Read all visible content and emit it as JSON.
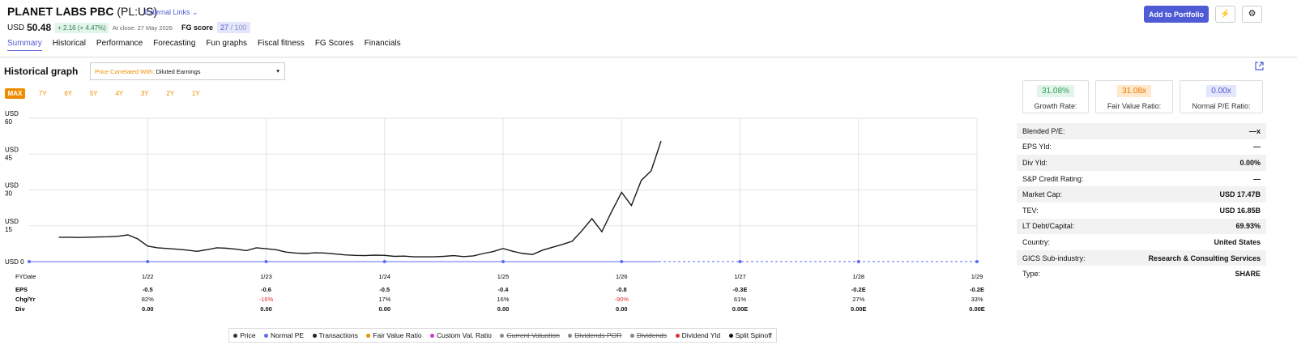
{
  "header": {
    "name": "PLANET LABS PBC",
    "ticker": "(PL:US)",
    "external_links": "External Links",
    "currency": "USD",
    "price": "50.48",
    "change": "+ 2.16 (+ 4.47%)",
    "close": "At close: 27 May 2026",
    "fg_label": "FG score",
    "fg_score": "27",
    "fg_max": "/ 100",
    "add_button": "Add to Portfolio"
  },
  "tabs": [
    "Summary",
    "Historical",
    "Performance",
    "Forecasting",
    "Fun graphs",
    "Fiscal fitness",
    "FG Scores",
    "Financials"
  ],
  "graph": {
    "title": "Historical graph",
    "correlated_label": "Price Correlated With:",
    "correlated_value": "Diluted Earnings",
    "ranges": [
      "MAX",
      "7Y",
      "6Y",
      "5Y",
      "4Y",
      "3Y",
      "2Y",
      "1Y"
    ]
  },
  "chart_data": {
    "type": "line",
    "grid": true,
    "xlim": [
      "1/21",
      "1/29"
    ],
    "xticks": [
      "1/22",
      "1/23",
      "1/24",
      "1/25",
      "1/26",
      "1/27",
      "1/28",
      "1/29"
    ],
    "ylim": [
      0,
      60
    ],
    "yticks": [
      {
        "value": 0,
        "label": "USD 0"
      },
      {
        "value": 15,
        "label": "USD 15"
      },
      {
        "value": 30,
        "label": "USD 30"
      },
      {
        "value": 45,
        "label": "USD 45"
      },
      {
        "value": 60,
        "label": "USD 60"
      }
    ],
    "series": [
      {
        "name": "Price",
        "color": "#1a1a1a",
        "x": [
          "4/21",
          "5/21",
          "6/21",
          "7/21",
          "8/21",
          "9/21",
          "10/21",
          "11/21",
          "12/21",
          "1/22",
          "2/22",
          "3/22",
          "4/22",
          "5/22",
          "6/22",
          "7/22",
          "8/22",
          "9/22",
          "10/22",
          "11/22",
          "12/22",
          "1/23",
          "2/23",
          "3/23",
          "4/23",
          "5/23",
          "6/23",
          "7/23",
          "8/23",
          "9/23",
          "10/23",
          "11/23",
          "12/23",
          "1/24",
          "2/24",
          "3/24",
          "4/24",
          "5/24",
          "6/24",
          "7/24",
          "8/24",
          "9/24",
          "10/24",
          "11/24",
          "12/24",
          "1/25",
          "2/25",
          "3/25",
          "4/25",
          "5/25",
          "6/25",
          "7/25",
          "8/25",
          "9/25",
          "10/25",
          "11/25",
          "12/25",
          "1/26",
          "2/26",
          "3/26",
          "4/26",
          "5/26"
        ],
        "values": [
          10.2,
          10.2,
          10.1,
          10.2,
          10.3,
          10.4,
          10.6,
          11.2,
          9.5,
          6.5,
          5.8,
          5.5,
          5.2,
          4.8,
          4.3,
          5.0,
          5.8,
          5.6,
          5.2,
          4.6,
          5.8,
          5.4,
          5.0,
          4.0,
          3.6,
          3.4,
          3.7,
          3.6,
          3.2,
          2.8,
          2.6,
          2.5,
          2.7,
          2.6,
          2.2,
          2.3,
          2.0,
          2.0,
          2.0,
          2.2,
          2.5,
          2.1,
          2.4,
          3.4,
          4.2,
          5.5,
          4.3,
          3.4,
          3.0,
          4.8,
          6.0,
          7.2,
          8.5,
          13.0,
          18.0,
          12.5,
          21.0,
          29.0,
          23.5,
          34.0,
          38.0,
          50.48
        ]
      },
      {
        "name": "Normal PE",
        "color": "#5b6ef5",
        "x": [
          "1/21",
          "1/22",
          "1/23",
          "1/24",
          "1/25",
          "1/26",
          "1/27",
          "1/28",
          "1/29"
        ],
        "values": [
          0,
          0,
          0,
          0,
          0,
          0,
          0,
          0,
          0
        ]
      }
    ]
  },
  "fy_table": {
    "header": "FYDate",
    "rows": [
      {
        "label": "EPS",
        "cells": [
          "-0.5",
          "-0.6",
          "-0.5",
          "-0.4",
          "-0.8",
          "-0.3E",
          "-0.2E",
          "-0.2E"
        ]
      },
      {
        "label": "Chg/Yr",
        "cells": [
          "82%",
          "-16%",
          "17%",
          "16%",
          "-90%",
          "61%",
          "27%",
          "33%"
        ]
      },
      {
        "label": "Div",
        "cells": [
          "0.00",
          "0.00",
          "0.00",
          "0.00",
          "0.00",
          "0.00E",
          "0.00E",
          "0.00E"
        ]
      }
    ]
  },
  "legend": [
    {
      "label": "Price",
      "color": "#333",
      "active": true
    },
    {
      "label": "Normal PE",
      "color": "#5b6ef5",
      "active": true
    },
    {
      "label": "Transactions",
      "color": "#222",
      "active": true
    },
    {
      "label": "Fair Value Ratio",
      "color": "#f08c00",
      "active": true
    },
    {
      "label": "Custom Val. Ratio",
      "color": "#d633d6",
      "active": true
    },
    {
      "label": "Current Valuation",
      "color": "#888",
      "active": false
    },
    {
      "label": "Dividends POR",
      "color": "#888",
      "active": false
    },
    {
      "label": "Dividends",
      "color": "#888",
      "active": false
    },
    {
      "label": "Dividend Yld",
      "color": "#e03131",
      "active": true
    },
    {
      "label": "Split Spinoff",
      "color": "#111",
      "active": true
    }
  ],
  "panel": {
    "cards": [
      {
        "value": "31.08%",
        "label": "Growth Rate:"
      },
      {
        "value": "31.08x",
        "label": "Fair Value Ratio:"
      },
      {
        "value": "0.00x",
        "label": "Normal P/E Ratio:"
      }
    ],
    "rows": [
      [
        "Blended P/E:",
        "—x"
      ],
      [
        "EPS Yld:",
        "—"
      ],
      [
        "Div Yld:",
        "0.00%"
      ],
      [
        "S&P Credit Rating:",
        "—"
      ],
      [
        "Market Cap:",
        "USD 17.47B"
      ],
      [
        "TEV:",
        "USD 16.85B"
      ],
      [
        "LT Debt/Capital:",
        "69.93%"
      ],
      [
        "Country:",
        "United States"
      ],
      [
        "GICS Sub-industry:",
        "Research & Consulting Services"
      ],
      [
        "Type:",
        "SHARE"
      ]
    ]
  }
}
